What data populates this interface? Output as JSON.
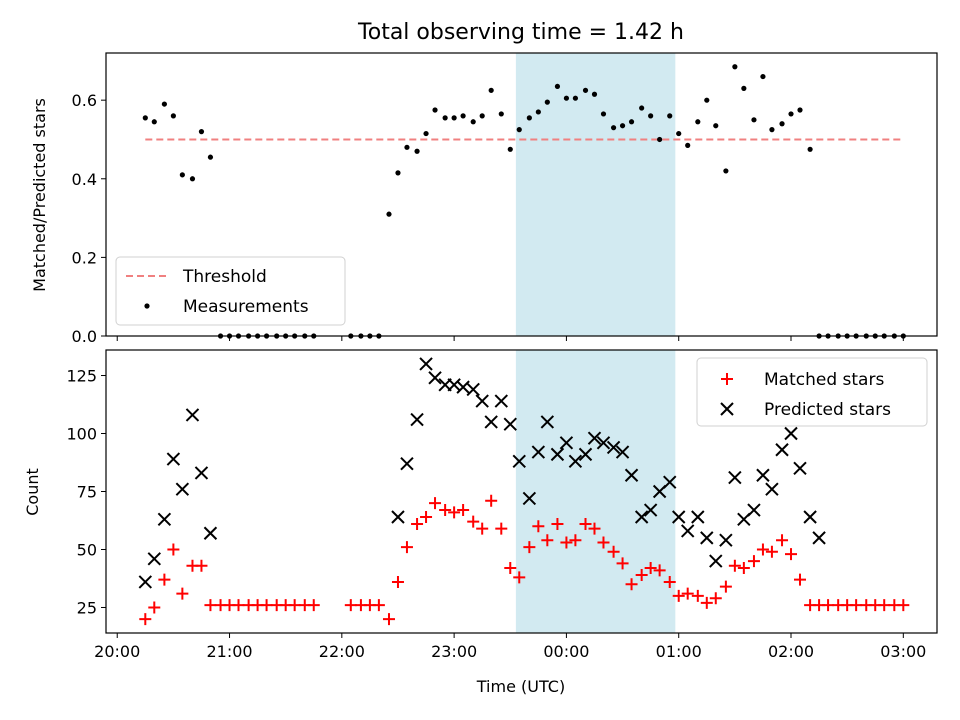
{
  "title": "Total observing time = 1.42 h",
  "colors": {
    "threshold": "#f08080",
    "measurement": "#000000",
    "matched": "#ff0000",
    "predicted": "#000000",
    "span": "#add8e6"
  },
  "chart_data": [
    {
      "type": "scatter",
      "xlabel": "",
      "ylabel": "Matched/Predicted stars",
      "ylim": [
        0,
        0.72
      ],
      "yticks": [
        "0.0",
        "0.2",
        "0.4",
        "0.6"
      ],
      "x_unit": "hours since 20:00 UTC",
      "xlim": [
        -0.1,
        7.3
      ],
      "xticks": [
        "20:00",
        "21:00",
        "22:00",
        "23:00",
        "00:00",
        "01:00",
        "02:00",
        "03:00"
      ],
      "xtick_labels_shown": false,
      "shaded_span": [
        3.55,
        4.97
      ],
      "legend": {
        "placement": "lower-left",
        "entries": [
          "Threshold",
          "Measurements"
        ]
      },
      "series": [
        {
          "name": "Threshold",
          "kind": "dashed-line",
          "x": [
            0.25,
            7.0
          ],
          "y": [
            0.5,
            0.5
          ]
        },
        {
          "name": "Measurements",
          "kind": "dot",
          "x": [
            0.25,
            0.33,
            0.42,
            0.5,
            0.58,
            0.67,
            0.75,
            0.83,
            0.92,
            1.0,
            1.08,
            1.17,
            1.25,
            1.33,
            1.42,
            1.5,
            1.58,
            1.67,
            1.75,
            2.08,
            2.17,
            2.25,
            2.33,
            2.42,
            2.5,
            2.58,
            2.67,
            2.75,
            2.83,
            2.92,
            3.0,
            3.08,
            3.17,
            3.25,
            3.33,
            3.42,
            3.5,
            3.58,
            3.67,
            3.75,
            3.83,
            3.92,
            4.0,
            4.08,
            4.17,
            4.25,
            4.33,
            4.42,
            4.5,
            4.58,
            4.67,
            4.75,
            4.83,
            4.92,
            5.0,
            5.08,
            5.17,
            5.25,
            5.33,
            5.42,
            5.5,
            5.58,
            5.67,
            5.75,
            5.83,
            5.92,
            6.0,
            6.08,
            6.17,
            6.25,
            6.33,
            6.42,
            6.5,
            6.58,
            6.67,
            6.75,
            6.83,
            6.92,
            7.0
          ],
          "y": [
            0.555,
            0.545,
            0.59,
            0.56,
            0.41,
            0.4,
            0.52,
            0.455,
            0,
            0,
            0,
            0,
            0,
            0,
            0,
            0,
            0,
            0,
            0,
            0,
            0,
            0,
            0,
            0.31,
            0.415,
            0.48,
            0.47,
            0.515,
            0.575,
            0.555,
            0.555,
            0.56,
            0.545,
            0.56,
            0.625,
            0.565,
            0.475,
            0.525,
            0.555,
            0.57,
            0.595,
            0.635,
            0.605,
            0.605,
            0.625,
            0.615,
            0.565,
            0.53,
            0.535,
            0.545,
            0.58,
            0.56,
            0.5,
            0.56,
            0.515,
            0.485,
            0.545,
            0.6,
            0.535,
            0.42,
            0.685,
            0.63,
            0.55,
            0.66,
            0.525,
            0.54,
            0.565,
            0.575,
            0.475,
            0,
            0,
            0,
            0,
            0,
            0,
            0,
            0,
            0,
            0
          ]
        }
      ]
    },
    {
      "type": "scatter",
      "xlabel": "Time (UTC)",
      "ylabel": "Count",
      "ylim": [
        14,
        136
      ],
      "yticks": [
        "25",
        "50",
        "75",
        "100",
        "125"
      ],
      "x_unit": "hours since 20:00 UTC",
      "xlim": [
        -0.1,
        7.3
      ],
      "xticks": [
        "20:00",
        "21:00",
        "22:00",
        "23:00",
        "00:00",
        "01:00",
        "02:00",
        "03:00"
      ],
      "shaded_span": [
        3.55,
        4.97
      ],
      "legend": {
        "placement": "top-right",
        "entries": [
          "Matched stars",
          "Predicted stars"
        ]
      },
      "series": [
        {
          "name": "Matched stars",
          "kind": "plus",
          "x": [
            0.25,
            0.33,
            0.42,
            0.5,
            0.58,
            0.67,
            0.75,
            0.83,
            0.92,
            1.0,
            1.08,
            1.17,
            1.25,
            1.33,
            1.42,
            1.5,
            1.58,
            1.67,
            1.75,
            2.08,
            2.17,
            2.25,
            2.33,
            2.42,
            2.5,
            2.58,
            2.67,
            2.75,
            2.83,
            2.92,
            3.0,
            3.08,
            3.17,
            3.25,
            3.33,
            3.42,
            3.5,
            3.58,
            3.67,
            3.75,
            3.83,
            3.92,
            4.0,
            4.08,
            4.17,
            4.25,
            4.33,
            4.42,
            4.5,
            4.58,
            4.67,
            4.75,
            4.83,
            4.92,
            5.0,
            5.08,
            5.17,
            5.25,
            5.33,
            5.42,
            5.5,
            5.58,
            5.67,
            5.75,
            5.83,
            5.92,
            6.0,
            6.08,
            6.17,
            6.25,
            6.33,
            6.42,
            6.5,
            6.58,
            6.67,
            6.75,
            6.83,
            6.92,
            7.0
          ],
          "y": [
            20,
            25,
            37,
            50,
            31,
            43,
            43,
            26,
            26,
            26,
            26,
            26,
            26,
            26,
            26,
            26,
            26,
            26,
            26,
            26,
            26,
            26,
            26,
            20,
            36,
            51,
            61,
            64,
            70,
            67,
            66,
            67,
            62,
            59,
            71,
            59,
            42,
            38,
            51,
            60,
            54,
            61,
            53,
            54,
            61,
            59,
            53,
            49,
            44,
            35,
            39,
            42,
            41,
            36,
            30,
            31,
            30,
            27,
            29,
            34,
            43,
            42,
            45,
            50,
            49,
            54,
            48,
            37,
            26,
            26,
            26,
            26,
            26,
            26,
            26,
            26,
            26,
            26,
            26
          ]
        },
        {
          "name": "Predicted stars",
          "kind": "cross",
          "x": [
            0.25,
            0.33,
            0.42,
            0.5,
            0.58,
            0.67,
            0.75,
            0.83,
            2.5,
            2.58,
            2.67,
            2.75,
            2.83,
            2.92,
            3.0,
            3.08,
            3.17,
            3.25,
            3.33,
            3.42,
            3.5,
            3.58,
            3.67,
            3.75,
            3.83,
            3.92,
            4.0,
            4.08,
            4.17,
            4.25,
            4.33,
            4.42,
            4.5,
            4.58,
            4.67,
            4.75,
            4.83,
            4.92,
            5.0,
            5.08,
            5.17,
            5.25,
            5.33,
            5.42,
            5.5,
            5.58,
            5.67,
            5.75,
            5.83,
            5.92,
            6.0,
            6.08,
            6.17,
            6.25
          ],
          "y": [
            36,
            46,
            63,
            89,
            76,
            108,
            83,
            57,
            64,
            87,
            106,
            130,
            124,
            121,
            121,
            120,
            119,
            114,
            105,
            114,
            104,
            88,
            72,
            92,
            105,
            91,
            96,
            88,
            91,
            98,
            96,
            94,
            92,
            82,
            64,
            67,
            75,
            79,
            64,
            58,
            64,
            55,
            45,
            54,
            81,
            63,
            67,
            82,
            76,
            93,
            100,
            85,
            64,
            55
          ]
        }
      ]
    }
  ]
}
